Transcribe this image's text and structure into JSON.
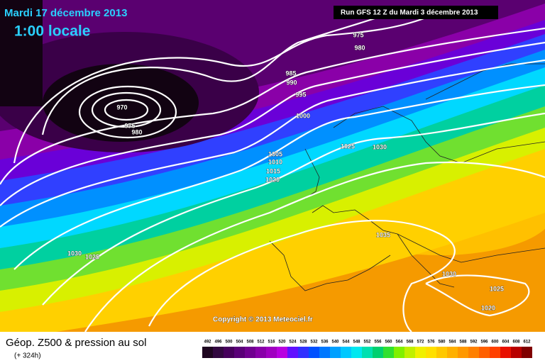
{
  "header": {
    "date": "Mardi 17 décembre 2013",
    "time": "1:00 locale",
    "run": "Run GFS 12 Z du Mardi 3 décembre 2013"
  },
  "isobar_labels": [
    "970",
    "975",
    "980",
    "975",
    "980",
    "985",
    "990",
    "995",
    "1000",
    "1005",
    "1010",
    "1015",
    "1020",
    "1025",
    "1030",
    "1035",
    "1030",
    "1025",
    "1030",
    "1025",
    "1020"
  ],
  "copyright": "Copyright © 2013 Meteociel.fr",
  "legend": {
    "title": "Géop. Z500 & pression au sol",
    "lead": "(+ 324h)",
    "scale": [
      492,
      496,
      500,
      504,
      508,
      512,
      516,
      520,
      524,
      528,
      532,
      536,
      540,
      544,
      548,
      552,
      556,
      560,
      564,
      568,
      572,
      576,
      580,
      584,
      588,
      592,
      596,
      600,
      604,
      608,
      612
    ],
    "colors": [
      "#1e0620",
      "#320840",
      "#46005c",
      "#5a0078",
      "#700090",
      "#8800a8",
      "#a000c0",
      "#b800e0",
      "#6010ff",
      "#3030ff",
      "#0050ff",
      "#0078ff",
      "#00a0ff",
      "#00c8ff",
      "#00e8f0",
      "#00e0b0",
      "#00d070",
      "#30e030",
      "#80f000",
      "#c0f000",
      "#f0f000",
      "#ffe000",
      "#ffc800",
      "#ffb000",
      "#ff9800",
      "#ff8000",
      "#ff6000",
      "#ff4000",
      "#e81000",
      "#b80000",
      "#800000"
    ]
  }
}
